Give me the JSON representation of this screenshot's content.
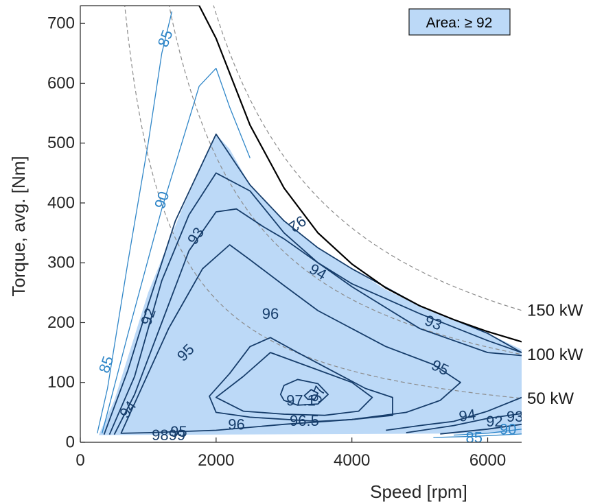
{
  "chart_data": {
    "type": "contour",
    "xlabel": "Speed [rpm]",
    "ylabel": "Torque, avg. [Nm]",
    "xlim": [
      0,
      6500
    ],
    "ylim": [
      0,
      730
    ],
    "xticks": [
      0,
      2000,
      4000,
      6000
    ],
    "yticks": [
      0,
      100,
      200,
      300,
      400,
      500,
      600,
      700
    ],
    "legend": {
      "text": "Area: ≥ 92",
      "placement": "top-right"
    },
    "colors": {
      "area_fill": "#bcd9f7",
      "contour_dark": "#163d6b",
      "contour_light": "#2f86c8",
      "envelope": "#000000",
      "power_curve": "#8c8c8c"
    },
    "torque_envelope": [
      [
        0,
        730
      ],
      [
        1750,
        730
      ],
      [
        2000,
        675
      ],
      [
        2500,
        530
      ],
      [
        3000,
        425
      ],
      [
        3500,
        350
      ],
      [
        4000,
        298
      ],
      [
        4500,
        258
      ],
      [
        5000,
        228
      ],
      [
        5500,
        205
      ],
      [
        6000,
        185
      ],
      [
        6500,
        168
      ]
    ],
    "power_curves": [
      {
        "label": "150 kW",
        "kw": 150
      },
      {
        "label": "100 kW",
        "kw": 100
      },
      {
        "label": "50 kW",
        "kw": 50
      }
    ],
    "area_region": [
      [
        270,
        12
      ],
      [
        500,
        70
      ],
      [
        1000,
        250
      ],
      [
        1500,
        390
      ],
      [
        2000,
        515
      ],
      [
        2200,
        490
      ],
      [
        2500,
        430
      ],
      [
        3000,
        370
      ],
      [
        3500,
        325
      ],
      [
        4000,
        290
      ],
      [
        4500,
        255
      ],
      [
        5000,
        228
      ],
      [
        5500,
        205
      ],
      [
        6000,
        182
      ],
      [
        6500,
        155
      ],
      [
        6500,
        15
      ],
      [
        270,
        12
      ]
    ],
    "contours": [
      {
        "level": "85",
        "style": "light",
        "points": [
          [
            250,
            15
          ],
          [
            400,
            90
          ],
          [
            700,
            300
          ],
          [
            1000,
            500
          ],
          [
            1200,
            650
          ],
          [
            1350,
            720
          ]
        ]
      },
      {
        "level": "85",
        "style": "light",
        "points": [
          [
            5200,
            8
          ],
          [
            5800,
            10
          ],
          [
            6500,
            14
          ]
        ]
      },
      {
        "level": "90",
        "style": "light",
        "points": [
          [
            320,
            15
          ],
          [
            700,
            180
          ],
          [
            1200,
            390
          ],
          [
            1750,
            595
          ],
          [
            2000,
            625
          ],
          [
            2200,
            560
          ],
          [
            2500,
            475
          ]
        ]
      },
      {
        "level": "90",
        "style": "light",
        "points": [
          [
            5500,
            12
          ],
          [
            6000,
            15
          ],
          [
            6500,
            22
          ]
        ]
      },
      {
        "level": "92",
        "style": "dark",
        "points": [
          [
            350,
            13
          ],
          [
            700,
            120
          ],
          [
            1000,
            230
          ],
          [
            1400,
            370
          ],
          [
            2000,
            515
          ],
          [
            2500,
            430
          ],
          [
            3000,
            370
          ],
          [
            3500,
            325
          ],
          [
            4000,
            290
          ],
          [
            5000,
            228
          ],
          [
            6000,
            182
          ],
          [
            6500,
            150
          ]
        ]
      },
      {
        "level": "92",
        "style": "dark",
        "points": [
          [
            5300,
            14
          ],
          [
            6000,
            22
          ],
          [
            6500,
            30
          ]
        ]
      },
      {
        "level": "93",
        "style": "dark",
        "points": [
          [
            430,
            13
          ],
          [
            800,
            110
          ],
          [
            1200,
            270
          ],
          [
            1600,
            380
          ],
          [
            2000,
            450
          ],
          [
            2500,
            420
          ],
          [
            3000,
            350
          ],
          [
            3500,
            300
          ],
          [
            4000,
            265
          ],
          [
            5000,
            215
          ],
          [
            6000,
            170
          ],
          [
            6500,
            150
          ]
        ]
      },
      {
        "level": "93",
        "style": "dark",
        "points": [
          [
            4800,
            16
          ],
          [
            5500,
            28
          ],
          [
            6000,
            40
          ],
          [
            6500,
            48
          ]
        ]
      },
      {
        "level": "94",
        "style": "dark",
        "points": [
          [
            500,
            13
          ],
          [
            800,
            80
          ],
          [
            1200,
            200
          ],
          [
            1600,
            320
          ],
          [
            2000,
            385
          ],
          [
            2300,
            390
          ],
          [
            2700,
            360
          ],
          [
            3000,
            340
          ],
          [
            3500,
            300
          ],
          [
            4000,
            260
          ],
          [
            5000,
            190
          ],
          [
            6000,
            150
          ],
          [
            6500,
            145
          ]
        ]
      },
      {
        "level": "94",
        "style": "dark",
        "points": [
          [
            4500,
            20
          ],
          [
            5000,
            28
          ],
          [
            5500,
            35
          ],
          [
            6000,
            52
          ],
          [
            6500,
            75
          ]
        ]
      },
      {
        "level": "95",
        "style": "dark",
        "points": [
          [
            600,
            15
          ],
          [
            900,
            90
          ],
          [
            1300,
            190
          ],
          [
            1800,
            290
          ],
          [
            2200,
            330
          ],
          [
            2500,
            305
          ],
          [
            3000,
            262
          ],
          [
            3500,
            220
          ],
          [
            4000,
            190
          ],
          [
            4500,
            160
          ],
          [
            5200,
            130
          ],
          [
            5600,
            100
          ],
          [
            5300,
            70
          ],
          [
            4800,
            50
          ],
          [
            4000,
            38
          ],
          [
            3000,
            30
          ],
          [
            2000,
            20
          ],
          [
            1000,
            16
          ],
          [
            600,
            15
          ]
        ]
      },
      {
        "level": "96",
        "style": "dark",
        "points": [
          [
            1900,
            77
          ],
          [
            2200,
            115
          ],
          [
            2500,
            160
          ],
          [
            2800,
            175
          ],
          [
            3200,
            150
          ],
          [
            3700,
            120
          ],
          [
            4200,
            90
          ],
          [
            4600,
            75
          ],
          [
            4600,
            45
          ],
          [
            4000,
            38
          ],
          [
            3500,
            35
          ],
          [
            2500,
            42
          ],
          [
            2000,
            50
          ],
          [
            1900,
            77
          ]
        ]
      },
      {
        "level": "96.5",
        "style": "dark",
        "points": [
          [
            2000,
            75
          ],
          [
            2400,
            110
          ],
          [
            2800,
            150
          ],
          [
            3400,
            125
          ],
          [
            4000,
            100
          ],
          [
            4300,
            75
          ],
          [
            4100,
            52
          ],
          [
            3600,
            45
          ],
          [
            3000,
            47
          ],
          [
            2400,
            52
          ],
          [
            2000,
            75
          ]
        ]
      },
      {
        "level": "97",
        "style": "dark",
        "points": [
          [
            2950,
            80
          ],
          [
            3000,
            95
          ],
          [
            3200,
            105
          ],
          [
            3500,
            98
          ],
          [
            3650,
            80
          ],
          [
            3500,
            64
          ],
          [
            3200,
            62
          ],
          [
            3000,
            70
          ],
          [
            2950,
            80
          ]
        ]
      },
      {
        "level": "97.1",
        "style": "dark",
        "points": [
          [
            3300,
            78
          ],
          [
            3400,
            88
          ],
          [
            3500,
            82
          ],
          [
            3450,
            72
          ],
          [
            3350,
            72
          ],
          [
            3300,
            78
          ]
        ]
      }
    ],
    "contour_labels": [
      {
        "text": "85",
        "x": 1250,
        "y": 675,
        "rotate": -70,
        "style": "light"
      },
      {
        "text": "85",
        "x": 380,
        "y": 130,
        "rotate": -72,
        "style": "light"
      },
      {
        "text": "85",
        "x": 5800,
        "y": 8,
        "rotate": 0,
        "style": "light"
      },
      {
        "text": "90",
        "x": 1200,
        "y": 405,
        "rotate": -72,
        "style": "light"
      },
      {
        "text": "90",
        "x": 6300,
        "y": 22,
        "rotate": 0,
        "style": "light"
      },
      {
        "text": "92",
        "x": 1000,
        "y": 210,
        "rotate": -70,
        "style": "dark"
      },
      {
        "text": "92",
        "x": 3200,
        "y": 365,
        "rotate": 145,
        "style": "dark"
      },
      {
        "text": "92",
        "x": 6100,
        "y": 35,
        "rotate": 0,
        "style": "dark"
      },
      {
        "text": "93",
        "x": 1700,
        "y": 345,
        "rotate": -55,
        "style": "dark"
      },
      {
        "text": "93",
        "x": 5200,
        "y": 200,
        "rotate": 22,
        "style": "dark"
      },
      {
        "text": "93",
        "x": 6400,
        "y": 43,
        "rotate": 0,
        "style": "dark"
      },
      {
        "text": "94",
        "x": 3500,
        "y": 285,
        "rotate": 30,
        "style": "dark"
      },
      {
        "text": "94",
        "x": 700,
        "y": 55,
        "rotate": -55,
        "style": "dark"
      },
      {
        "text": "94",
        "x": 5700,
        "y": 45,
        "rotate": -8,
        "style": "dark"
      },
      {
        "text": "95",
        "x": 1550,
        "y": 150,
        "rotate": -45,
        "style": "dark"
      },
      {
        "text": "95",
        "x": 5300,
        "y": 125,
        "rotate": 25,
        "style": "dark"
      },
      {
        "text": "95",
        "x": 1450,
        "y": 18,
        "rotate": 0,
        "style": "dark"
      },
      {
        "text": "96",
        "x": 2800,
        "y": 215,
        "rotate": 0,
        "style": "dark"
      },
      {
        "text": "96",
        "x": 2300,
        "y": 30,
        "rotate": 0,
        "style": "dark"
      },
      {
        "text": "96.5",
        "x": 3300,
        "y": 36,
        "rotate": 0,
        "style": "dark"
      },
      {
        "text": "97.1",
        "x": 3250,
        "y": 70,
        "rotate": 0,
        "style": "dark"
      },
      {
        "text": "97",
        "x": 3500,
        "y": 80,
        "rotate": -70,
        "style": "dark"
      },
      {
        "text": "9899",
        "x": 1300,
        "y": 12,
        "rotate": 0,
        "style": "dark"
      }
    ]
  }
}
